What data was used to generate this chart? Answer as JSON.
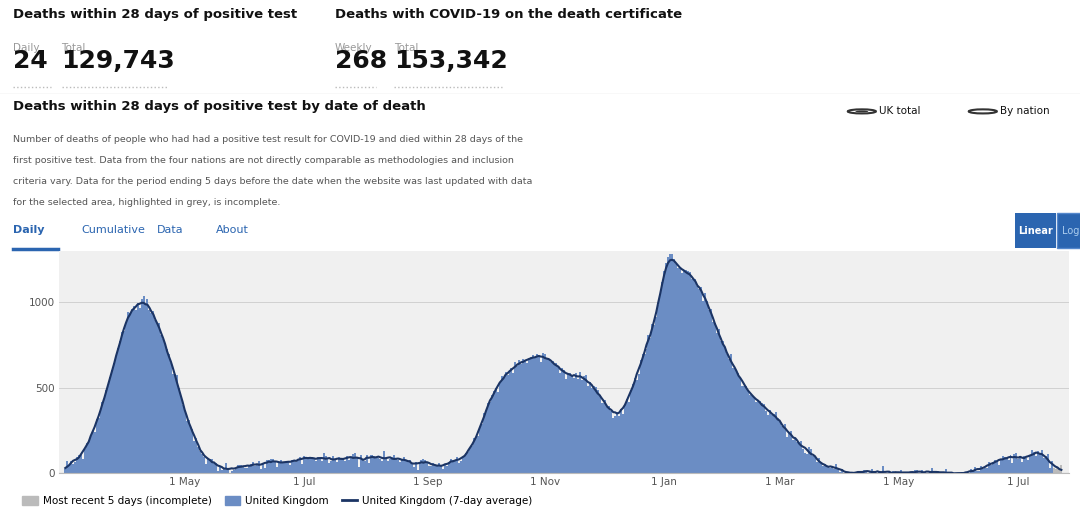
{
  "title1": "Deaths within 28 days of positive test",
  "label1a": "Daily",
  "label1b": "Total",
  "val1a": "24",
  "val1b": "129,743",
  "title2": "Deaths with COVID-19 on the death certificate",
  "label2a": "Weekly",
  "label2b": "Total",
  "val2a": "268",
  "val2b": "153,342",
  "section_title": "Deaths within 28 days of positive test by date of death",
  "desc_lines": [
    "Number of deaths of people who had had a positive test result for COVID-19 and died within 28 days of the",
    "first positive test. Data from the four nations are not directly comparable as methodologies and inclusion",
    "criteria vary. Data for the period ending 5 days before the date when the website was last updated with data",
    "for the selected area, highlighted in grey, is incomplete."
  ],
  "tabs": [
    "Daily",
    "Cumulative",
    "Data",
    "About"
  ],
  "active_tab": "Daily",
  "radio1": "UK total",
  "radio2": "By nation",
  "btn_linear": "Linear",
  "btn_log": "Log",
  "legend_grey": "Most recent 5 days (incomplete)",
  "legend_blue": "United Kingdom",
  "legend_line": "United Kingdom (7-day average)",
  "bar_color": "#6B8DC4",
  "bar_color_grey": "#BBBBBB",
  "line_color": "#1B3464",
  "bg_top": "#FFFFFF",
  "bg_chart": "#F0F0F0",
  "text_dark": "#111111",
  "text_grey": "#999999",
  "text_desc": "#555555",
  "tab_active_color": "#2B65B0",
  "x_labels": [
    "1 May",
    "1 Jul",
    "1 Sep",
    "1 Nov",
    "1 Jan",
    "1 Mar",
    "1 May",
    "1 Jul"
  ],
  "y_ticks": [
    0,
    500,
    1000
  ],
  "ylim_max": 1300
}
